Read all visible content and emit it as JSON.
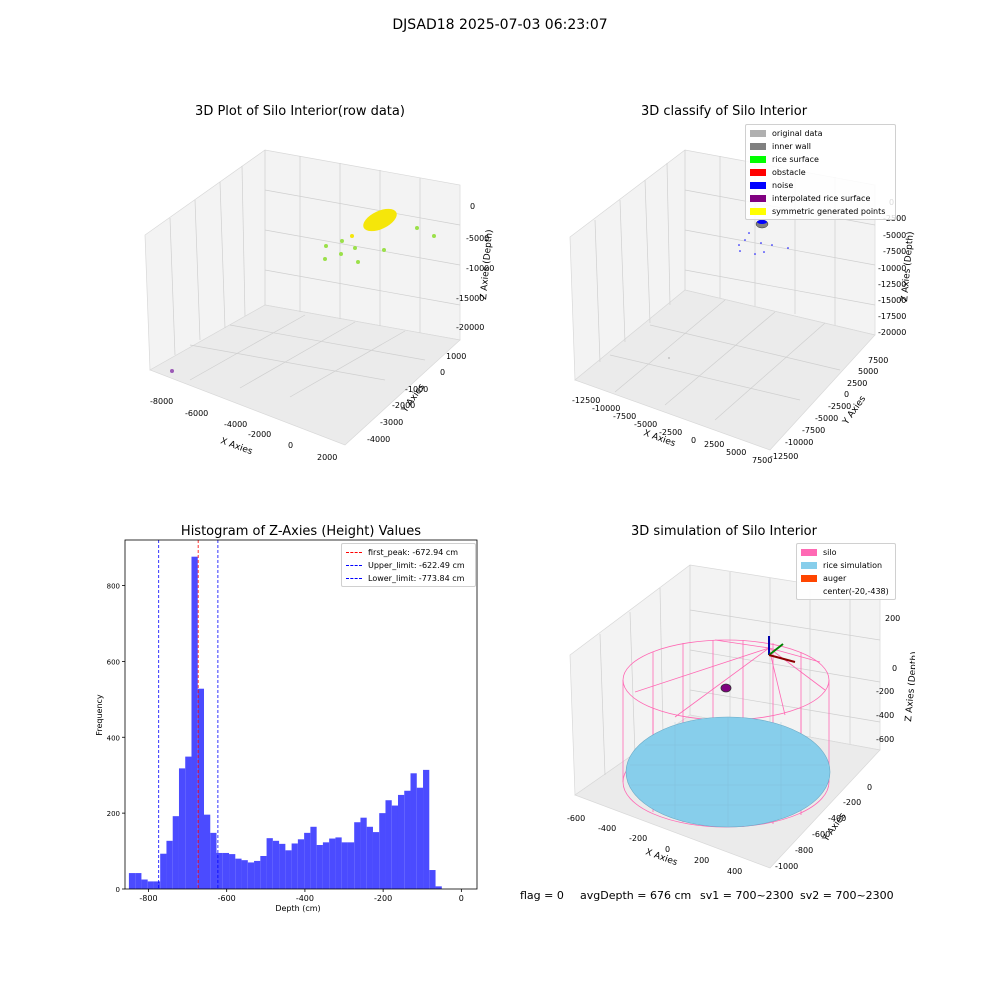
{
  "figure": {
    "suptitle": "DJSAD18 2025-07-03 06:23:07"
  },
  "panel1": {
    "title": "3D Plot of Silo Interior(row data)",
    "xlabel": "X Axies",
    "ylabel": "Y Axies",
    "zlabel": "Z Axies (Depth)",
    "xticks": [
      "-8000",
      "-6000",
      "-4000",
      "-2000",
      "0",
      "2000"
    ],
    "yticks": [
      "1000",
      "0",
      "-1000",
      "-2000",
      "-3000",
      "-4000"
    ],
    "zticks": [
      "0",
      "-5000",
      "-10000",
      "-15000",
      "-20000"
    ]
  },
  "panel2": {
    "title": "3D classify of Silo Interior",
    "xlabel": "X Axies",
    "ylabel": "Y Axies",
    "zlabel": "Z Axies (Depth)",
    "xticks": [
      "-12500",
      "-10000",
      "-7500",
      "-5000",
      "-2500",
      "0",
      "2500",
      "5000",
      "7500"
    ],
    "yticks": [
      "7500",
      "5000",
      "2500",
      "0",
      "-2500",
      "-5000",
      "-7500",
      "-10000",
      "-12500"
    ],
    "zticks": [
      "0",
      "-2500",
      "-5000",
      "-7500",
      "-10000",
      "-12500",
      "-15000",
      "-17500",
      "-20000"
    ],
    "legend": [
      {
        "label": "original data",
        "color": "#b0b0b0"
      },
      {
        "label": "inner wall",
        "color": "#808080"
      },
      {
        "label": "rice surface",
        "color": "#00ff00"
      },
      {
        "label": "obstacle",
        "color": "#ff0000"
      },
      {
        "label": "noise",
        "color": "#0000ff"
      },
      {
        "label": "interpolated rice surface",
        "color": "#800080"
      },
      {
        "label": "symmetric generated points",
        "color": "#ffff00"
      }
    ]
  },
  "panel3": {
    "title": "Histogram of Z-Axies (Height) Values",
    "legend": [
      {
        "label": "first_peak: -672.94 cm",
        "color": "#ff0000"
      },
      {
        "label": "Upper_limit: -622.49 cm",
        "color": "#0000ff"
      },
      {
        "label": "Lower_limit: -773.84 cm",
        "color": "#0000ff"
      }
    ]
  },
  "panel4": {
    "title": "3D simulation of Silo Interior",
    "xlabel": "X Axies",
    "ylabel": "Y Axies",
    "zlabel": "Z Axies (Depth)",
    "xticks": [
      "-600",
      "-400",
      "-200",
      "0",
      "200",
      "400"
    ],
    "yticks": [
      "0",
      "-200",
      "-400",
      "-600",
      "-800",
      "-1000"
    ],
    "zticks": [
      "200",
      "0",
      "-200",
      "-400",
      "-600"
    ],
    "legend": [
      {
        "label": "silo",
        "color": "#ff69b4"
      },
      {
        "label": "rice simulation",
        "color": "#87ceeb"
      },
      {
        "label": "auger",
        "color": "#ff4500"
      },
      {
        "label": "center(-20,-438)",
        "color": ""
      }
    ]
  },
  "footer": {
    "flag": "flag = 0",
    "avg": "avgDepth = 676 cm",
    "sv1": "sv1 = 700~2300",
    "sv2": "sv2 = 700~2300"
  },
  "chart_data": {
    "type": "bar",
    "title": "Histogram of Z-Axies (Height) Values",
    "xlabel": "Depth (cm)",
    "ylabel": "Frequency",
    "xlim": [
      -860,
      40
    ],
    "ylim": [
      0,
      920
    ],
    "xticks": [
      -800,
      -600,
      -400,
      -200,
      0
    ],
    "yticks": [
      0,
      200,
      400,
      600,
      800
    ],
    "bar_color": "#4b4bff",
    "bins": [
      {
        "x0": -850,
        "x1": -834,
        "v": 42
      },
      {
        "x0": -834,
        "x1": -818,
        "v": 42
      },
      {
        "x0": -818,
        "x1": -802,
        "v": 25
      },
      {
        "x0": -802,
        "x1": -786,
        "v": 20
      },
      {
        "x0": -786,
        "x1": -770,
        "v": 20
      },
      {
        "x0": -770,
        "x1": -754,
        "v": 93
      },
      {
        "x0": -754,
        "x1": -738,
        "v": 127
      },
      {
        "x0": -738,
        "x1": -722,
        "v": 192
      },
      {
        "x0": -722,
        "x1": -706,
        "v": 318
      },
      {
        "x0": -706,
        "x1": -690,
        "v": 349
      },
      {
        "x0": -690,
        "x1": -674,
        "v": 876
      },
      {
        "x0": -674,
        "x1": -658,
        "v": 528
      },
      {
        "x0": -658,
        "x1": -642,
        "v": 196
      },
      {
        "x0": -642,
        "x1": -626,
        "v": 148
      },
      {
        "x0": -626,
        "x1": -610,
        "v": 95
      },
      {
        "x0": -610,
        "x1": -594,
        "v": 95
      },
      {
        "x0": -594,
        "x1": -578,
        "v": 92
      },
      {
        "x0": -578,
        "x1": -562,
        "v": 80
      },
      {
        "x0": -562,
        "x1": -546,
        "v": 76
      },
      {
        "x0": -546,
        "x1": -530,
        "v": 70
      },
      {
        "x0": -530,
        "x1": -514,
        "v": 74
      },
      {
        "x0": -514,
        "x1": -498,
        "v": 87
      },
      {
        "x0": -498,
        "x1": -482,
        "v": 134
      },
      {
        "x0": -482,
        "x1": -466,
        "v": 127
      },
      {
        "x0": -466,
        "x1": -450,
        "v": 119
      },
      {
        "x0": -450,
        "x1": -434,
        "v": 102
      },
      {
        "x0": -434,
        "x1": -418,
        "v": 120
      },
      {
        "x0": -418,
        "x1": -402,
        "v": 131
      },
      {
        "x0": -402,
        "x1": -386,
        "v": 148
      },
      {
        "x0": -386,
        "x1": -370,
        "v": 164
      },
      {
        "x0": -370,
        "x1": -354,
        "v": 116
      },
      {
        "x0": -354,
        "x1": -338,
        "v": 123
      },
      {
        "x0": -338,
        "x1": -322,
        "v": 133
      },
      {
        "x0": -322,
        "x1": -306,
        "v": 136
      },
      {
        "x0": -306,
        "x1": -290,
        "v": 123
      },
      {
        "x0": -290,
        "x1": -274,
        "v": 123
      },
      {
        "x0": -274,
        "x1": -258,
        "v": 176
      },
      {
        "x0": -258,
        "x1": -242,
        "v": 188
      },
      {
        "x0": -242,
        "x1": -226,
        "v": 164
      },
      {
        "x0": -226,
        "x1": -210,
        "v": 150
      },
      {
        "x0": -210,
        "x1": -194,
        "v": 200
      },
      {
        "x0": -194,
        "x1": -178,
        "v": 234
      },
      {
        "x0": -178,
        "x1": -162,
        "v": 220
      },
      {
        "x0": -162,
        "x1": -146,
        "v": 248
      },
      {
        "x0": -146,
        "x1": -130,
        "v": 259
      },
      {
        "x0": -130,
        "x1": -114,
        "v": 305
      },
      {
        "x0": -114,
        "x1": -98,
        "v": 267
      },
      {
        "x0": -98,
        "x1": -82,
        "v": 314
      },
      {
        "x0": -82,
        "x1": -66,
        "v": 50
      },
      {
        "x0": -66,
        "x1": -50,
        "v": 7
      }
    ],
    "vlines": [
      {
        "name": "first_peak",
        "x": -672.94,
        "color": "#ff0000"
      },
      {
        "name": "Upper_limit",
        "x": -622.49,
        "color": "#0000ff"
      },
      {
        "name": "Lower_limit",
        "x": -773.84,
        "color": "#0000ff"
      }
    ]
  }
}
